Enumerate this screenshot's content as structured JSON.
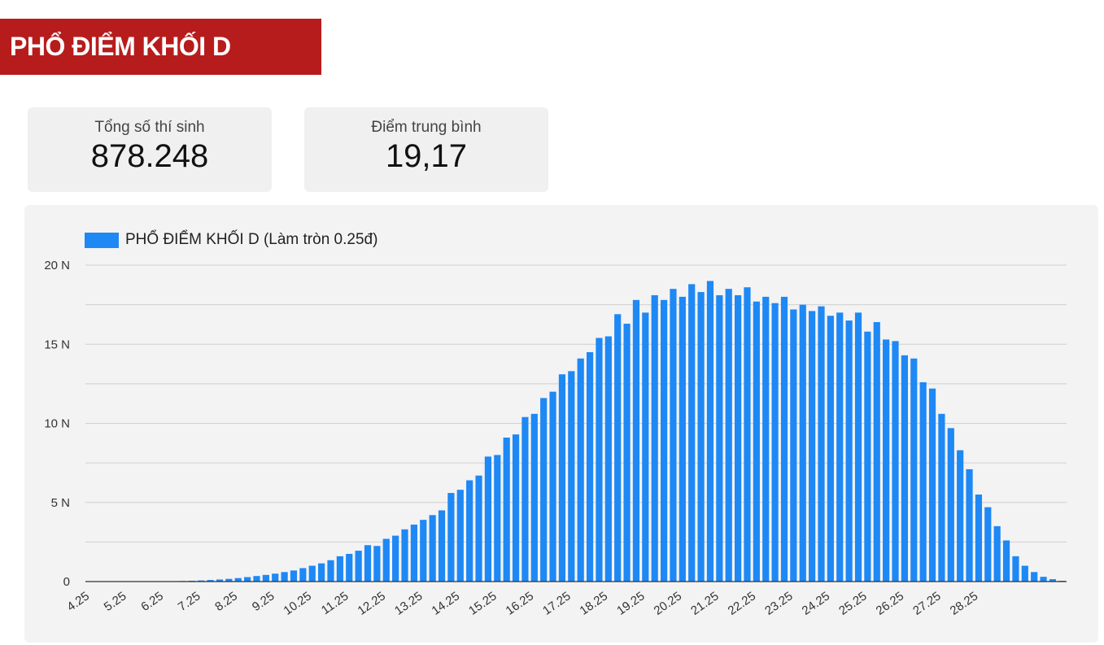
{
  "header": {
    "title": "PHỔ ĐIỂM KHỐI D"
  },
  "stats": {
    "total_label": "Tổng số thí sinh",
    "total_value": "878.248",
    "average_label": "Điểm trung bình",
    "average_value": "19,17"
  },
  "colors": {
    "banner": "#b71c1c",
    "bar": "#1e88f5",
    "grid": "#d0d0d0"
  },
  "chart_data": {
    "type": "bar",
    "title": "",
    "legend": "PHỔ ĐIỂM KHỐI D (Làm tròn 0.25đ)",
    "xlabel": "",
    "ylabel": "",
    "ylim": [
      0,
      20000
    ],
    "yticks": [
      {
        "value": 0,
        "label": "0"
      },
      {
        "value": 5000,
        "label": "5 N"
      },
      {
        "value": 10000,
        "label": "10 N"
      },
      {
        "value": 15000,
        "label": "15 N"
      },
      {
        "value": 20000,
        "label": "20 N"
      }
    ],
    "x_tick_labels": [
      "4.25",
      "5.25",
      "6.25",
      "7.25",
      "8.25",
      "9.25",
      "10.25",
      "11.25",
      "12.25",
      "13.25",
      "14.25",
      "15.25",
      "16.25",
      "17.25",
      "18.25",
      "19.25",
      "20.25",
      "21.25",
      "22.25",
      "23.25",
      "24.25",
      "25.25",
      "26.25",
      "27.25",
      "28.25"
    ],
    "x_start": 4.25,
    "x_step": 0.25,
    "values": [
      1,
      1,
      2,
      3,
      4,
      5,
      8,
      12,
      18,
      25,
      35,
      50,
      70,
      100,
      130,
      170,
      220,
      280,
      350,
      420,
      500,
      600,
      700,
      850,
      1000,
      1150,
      1350,
      1600,
      1750,
      1950,
      2300,
      2250,
      2700,
      2900,
      3300,
      3600,
      3900,
      4200,
      4500,
      5600,
      5800,
      6400,
      6700,
      7900,
      8000,
      9100,
      9300,
      10400,
      10600,
      11600,
      12000,
      13100,
      13300,
      14100,
      14500,
      15400,
      15500,
      16900,
      16300,
      17800,
      17000,
      18100,
      17800,
      18500,
      18000,
      18800,
      18300,
      19000,
      18100,
      18500,
      18100,
      18600,
      17700,
      18000,
      17600,
      18000,
      17200,
      17500,
      17100,
      17400,
      16800,
      17000,
      16500,
      17000,
      15800,
      16400,
      15300,
      15200,
      14300,
      14100,
      12600,
      12200,
      10600,
      9700,
      8300,
      7100,
      5500,
      4700,
      3500,
      2600,
      1600,
      1000,
      600,
      300,
      150,
      50
    ]
  }
}
